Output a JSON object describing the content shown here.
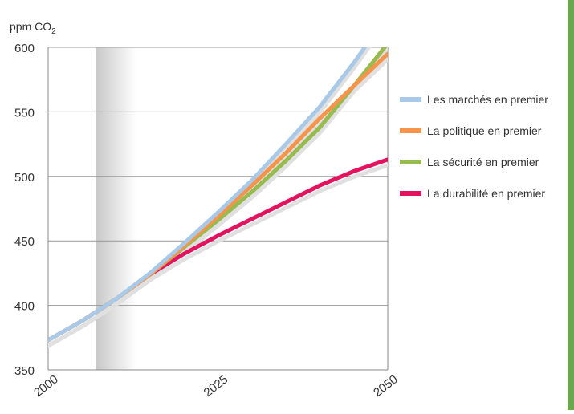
{
  "chart_data": {
    "type": "line",
    "ylabel": "ppm CO",
    "ylabel_sub": "2",
    "x_ticks": [
      2000,
      2025,
      2050
    ],
    "xlim": [
      2000,
      2050
    ],
    "ylim": [
      350,
      600
    ],
    "y_ticks": [
      350,
      400,
      450,
      500,
      550,
      600
    ],
    "shaded_region": {
      "x_start": 2007,
      "x_end": 2013
    },
    "series": [
      {
        "name": "Les marchés en premier",
        "color": "#a9c9e8",
        "x": [
          2000,
          2005,
          2010,
          2015,
          2020,
          2025,
          2030,
          2035,
          2040,
          2045,
          2050
        ],
        "values": [
          373,
          388,
          405,
          425,
          448,
          472,
          497,
          525,
          554,
          588,
          625
        ]
      },
      {
        "name": "La politique en premier",
        "color": "#f7944b",
        "x": [
          2000,
          2005,
          2010,
          2015,
          2020,
          2025,
          2030,
          2035,
          2040,
          2045,
          2050
        ],
        "values": [
          373,
          388,
          405,
          424,
          446,
          469,
          493,
          518,
          545,
          570,
          595
        ]
      },
      {
        "name": "La sécurité en premier",
        "color": "#98bb4f",
        "x": [
          2000,
          2005,
          2010,
          2015,
          2020,
          2025,
          2030,
          2035,
          2040,
          2045,
          2050
        ],
        "values": [
          373,
          388,
          405,
          424,
          445,
          466,
          488,
          512,
          538,
          570,
          603
        ]
      },
      {
        "name": "La durabilité en premier",
        "color": "#e3135f",
        "x": [
          2000,
          2005,
          2010,
          2015,
          2020,
          2025,
          2030,
          2035,
          2040,
          2045,
          2050
        ],
        "values": [
          373,
          388,
          405,
          424,
          440,
          454,
          467,
          480,
          493,
          504,
          513
        ]
      }
    ],
    "shadow_color": "#e0e0e0",
    "grid": true,
    "legend_position": "right"
  }
}
